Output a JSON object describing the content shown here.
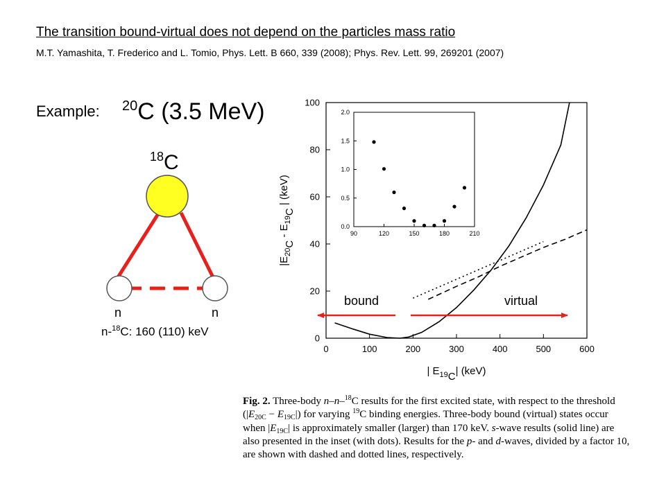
{
  "slide": {
    "title": "The transition bound-virtual does not depend on the particles mass ratio",
    "citation": "M.T. Yamashita, T. Frederico and L. Tomio, Phys. Lett. B 660, 339 (2008); Phys. Rev. Lett. 99, 269201 (2007)",
    "example_label": "Example:",
    "nucleus": {
      "mass_number": "20",
      "symbol": "C",
      "energy": "(3.5 MeV)"
    },
    "diagram": {
      "core": {
        "mass_number": "18",
        "symbol": "C",
        "color": "#ffff22"
      },
      "neutron_label": "n",
      "pair_energy": {
        "prefix": "n-",
        "mass_number": "18",
        "suffix": "C: 160 (110) keV"
      },
      "link_color": "#e8201c"
    },
    "labels": {
      "bound": "bound",
      "virtual": "virtual"
    },
    "arrow_color": "#e8201c"
  },
  "chart_data": {
    "main": {
      "type": "line",
      "xlabel": "| E19C| (keV)",
      "ylabel": "|E20C - E19C | (keV)",
      "xlim": [
        0,
        600
      ],
      "ylim": [
        0,
        100
      ],
      "x_ticks": [
        "0",
        "100",
        "200",
        "300",
        "400",
        "500",
        "600"
      ],
      "y_ticks": [
        "0",
        "20",
        "40",
        "60",
        "80",
        "100"
      ],
      "series": [
        {
          "style": "solid",
          "x": [
            20,
            60,
            100,
            140,
            170,
            190,
            220,
            260,
            300,
            340,
            380,
            420,
            460,
            500,
            540,
            560
          ],
          "y": [
            6.5,
            4,
            1.7,
            0.3,
            0,
            0.5,
            2.5,
            7,
            13,
            20.5,
            29,
            39,
            51,
            65,
            82,
            100
          ]
        },
        {
          "style": "dashed",
          "x": [
            235,
            300,
            350,
            400,
            450,
            500,
            550,
            600
          ],
          "y": [
            16.5,
            22,
            26,
            30.5,
            34.5,
            38.5,
            42,
            46
          ]
        },
        {
          "style": "dotted",
          "x": [
            200,
            250,
            300,
            350,
            400,
            450,
            500
          ],
          "y": [
            17,
            21,
            25,
            29,
            33,
            37,
            41
          ]
        }
      ]
    },
    "inset": {
      "type": "scatter",
      "xlim": [
        90,
        210
      ],
      "ylim": [
        0,
        2.0
      ],
      "x_ticks": [
        "90",
        "120",
        "150",
        "180",
        "210"
      ],
      "y_ticks": [
        "0.0",
        "0.5",
        "1.0",
        "1.5",
        "2.0"
      ],
      "points": {
        "x": [
          110,
          120,
          130,
          140,
          150,
          160,
          170,
          180,
          190,
          200
        ],
        "y": [
          1.48,
          1.01,
          0.6,
          0.32,
          0.1,
          0.02,
          0.02,
          0.1,
          0.35,
          0.68
        ]
      }
    }
  },
  "caption": {
    "fig": "Fig. 2.",
    "t1": " Three-body ",
    "t2": "n–n–",
    "t3": "18",
    "t4": "C results for the first excited state, with respect to the threshold (|",
    "t5": "E",
    "t6": "20C",
    "t7": " − ",
    "t8": "E",
    "t9": "19C",
    "t10": "|) for varying ",
    "t11": "19",
    "t12": "C binding energies. Three-body bound (virtual) states occur when |",
    "t13": "E",
    "t14": "19C",
    "t15": "| is approximately smaller (larger) than 170 keV. ",
    "t16": "s",
    "t17": "-wave results (solid line) are also presented in the inset (with dots). Results for the ",
    "t18": "p",
    "t19": "- and ",
    "t20": "d",
    "t21": "-waves, divided by a factor 10, are shown with dashed and dotted lines, respectively."
  }
}
